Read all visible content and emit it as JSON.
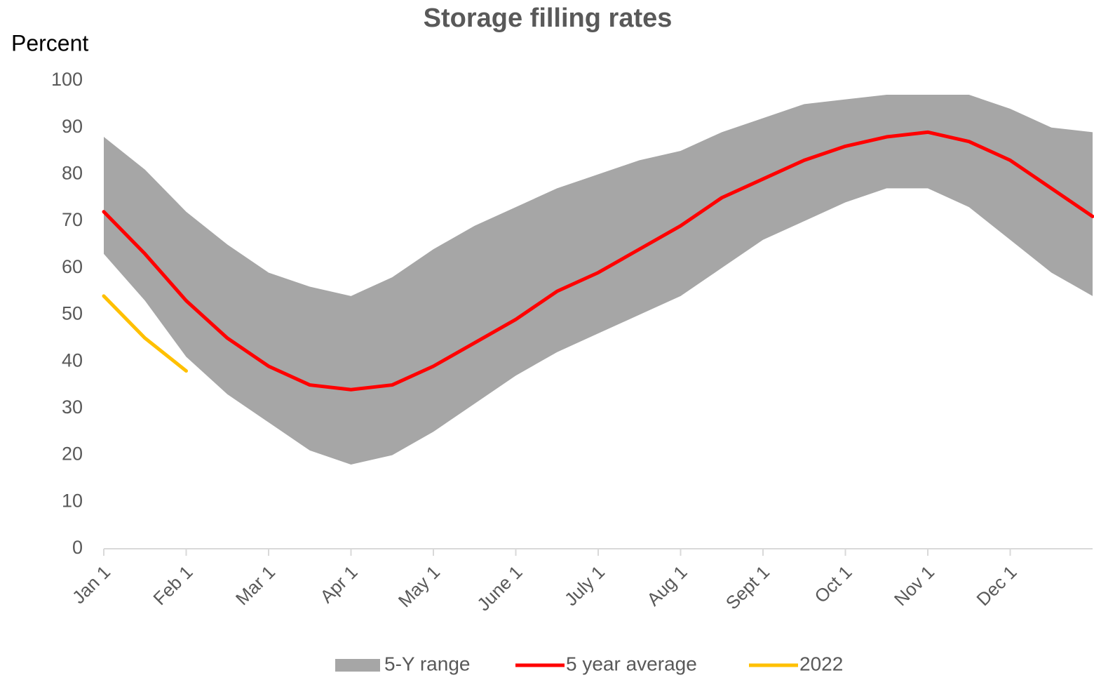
{
  "chart_data": {
    "type": "line",
    "title": "Storage filling rates",
    "y_label": "Percent",
    "categories": [
      "Jan 1",
      null,
      "Feb 1",
      null,
      "Mar 1",
      null,
      "Apr 1",
      null,
      "May 1",
      null,
      "June 1",
      null,
      "July 1",
      null,
      "Aug 1",
      null,
      "Sept 1",
      null,
      "Oct 1",
      null,
      "Nov 1",
      null,
      "Dec 1",
      null,
      null
    ],
    "range": {
      "name": "5-Y range",
      "color": "#a6a6a6",
      "upper": [
        88,
        81,
        72,
        65,
        59,
        56,
        54,
        58,
        64,
        69,
        73,
        77,
        80,
        83,
        85,
        89,
        92,
        95,
        96,
        97,
        97,
        97,
        94,
        90,
        89
      ],
      "lower": [
        63,
        53,
        41,
        33,
        27,
        21,
        18,
        20,
        25,
        31,
        37,
        42,
        46,
        50,
        54,
        60,
        66,
        70,
        74,
        77,
        77,
        73,
        66,
        59,
        54
      ]
    },
    "series": [
      {
        "name": "5 year average",
        "color": "#ff0000",
        "values": [
          72,
          63,
          53,
          45,
          39,
          35,
          34,
          35,
          39,
          44,
          49,
          55,
          59,
          64,
          69,
          75,
          79,
          83,
          86,
          88,
          89,
          87,
          83,
          77,
          71
        ]
      },
      {
        "name": "2022",
        "color": "#ffc000",
        "values": [
          54,
          45,
          38,
          null,
          null,
          null,
          null,
          null,
          null,
          null,
          null,
          null,
          null,
          null,
          null,
          null,
          null,
          null,
          null,
          null,
          null,
          null,
          null,
          null,
          null
        ]
      }
    ],
    "ylim": [
      0,
      100
    ],
    "yticks": [
      0,
      10,
      20,
      30,
      40,
      50,
      60,
      70,
      80,
      90,
      100
    ],
    "grid": false,
    "legend": "bottom"
  }
}
